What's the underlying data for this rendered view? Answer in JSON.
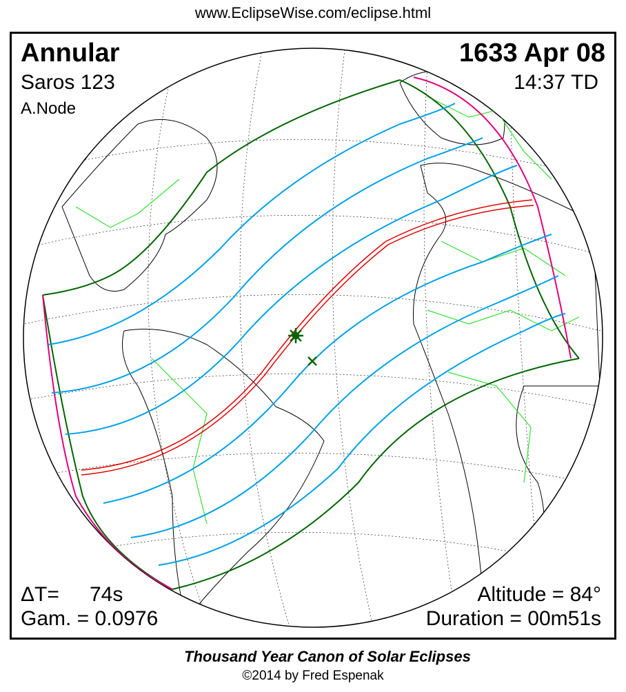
{
  "header_url": "www.EclipseWise.com/eclipse.html",
  "eclipse": {
    "type": "Annular",
    "saros": "Saros 123",
    "node": "A.Node",
    "date": "1633 Apr 08",
    "time": "14:37 TD",
    "delta_t_label": "ΔT=",
    "delta_t_value": "74s",
    "gamma": "Gam. = 0.0976",
    "altitude": "Altitude = 84°",
    "duration": "Duration = 00m51s"
  },
  "footer": {
    "title": "Thousand Year Canon of Solar Eclipses",
    "copyright": "©2014 by Fred Espenak"
  },
  "colors": {
    "penumbral_limits": "#006400",
    "partial_lines": "#00a0e8",
    "central_path": "#e00000",
    "rise_set": "#e0007a",
    "borders": "#30e030",
    "coastlines": "#000000",
    "graticule": "#000000"
  },
  "markers": {
    "greatest_eclipse": "asterisk",
    "sub_solar_point": "cross"
  }
}
